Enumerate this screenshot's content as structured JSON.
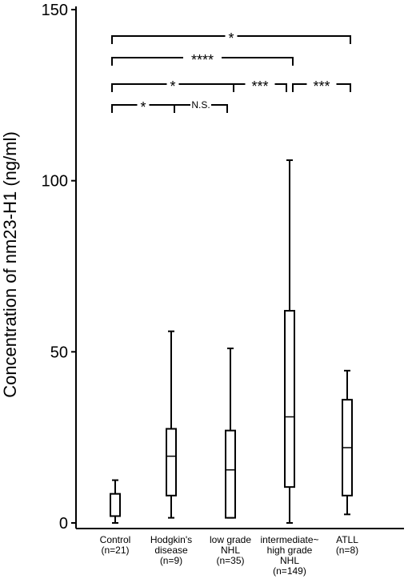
{
  "chart_data": {
    "type": "box",
    "title": "",
    "xlabel": "",
    "ylabel": "Concentration of nm23-H1 (ng/ml)",
    "ylim": [
      0,
      150
    ],
    "yticks": [
      "0",
      "50",
      "100",
      "150"
    ],
    "grid": false,
    "categories": [
      {
        "lines": [
          "Control",
          "(n=21)"
        ]
      },
      {
        "lines": [
          "Hodgkin's",
          "disease",
          "(n=9)"
        ]
      },
      {
        "lines": [
          "low grade",
          "NHL",
          "(n=35)"
        ]
      },
      {
        "lines": [
          "intermediate~",
          "high grade",
          "NHL",
          "(n=149)"
        ]
      },
      {
        "lines": [
          "ATLL",
          "(n=8)"
        ]
      }
    ],
    "boxes": [
      {
        "whisker_low": 0,
        "q1": 2,
        "median": 8.5,
        "q3": 8.5,
        "whisker_high": 12.5
      },
      {
        "whisker_low": 1.5,
        "q1": 8,
        "median": 19.5,
        "q3": 27.5,
        "whisker_high": 56
      },
      {
        "whisker_low": 1.5,
        "q1": 1.5,
        "median": 15.5,
        "q3": 27,
        "whisker_high": 51
      },
      {
        "whisker_low": 0,
        "q1": 10.5,
        "median": 31,
        "q3": 62,
        "whisker_high": 106
      },
      {
        "whisker_low": 2.5,
        "q1": 8,
        "median": 22,
        "q3": 36,
        "whisker_high": 44.5
      }
    ],
    "significance": [
      {
        "from": 0,
        "to": 4,
        "label": "*",
        "level": 4
      },
      {
        "from": 0,
        "to": 3,
        "label": "****",
        "level": 3
      },
      {
        "from": 0,
        "to": 2,
        "label": "*",
        "level": 2
      },
      {
        "from": 2,
        "to": 3,
        "label": "***",
        "level": 2
      },
      {
        "from": 3,
        "to": 4,
        "label": "***",
        "level": 2
      },
      {
        "from": 0,
        "to": 1,
        "label": "*",
        "level": 1
      },
      {
        "from": 1,
        "to": 2,
        "label": "N.S.",
        "level": 1
      }
    ]
  }
}
